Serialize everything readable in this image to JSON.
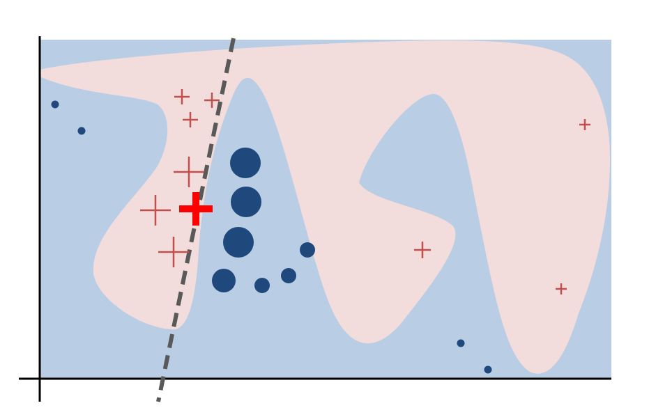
{
  "colors": {
    "background": "#ffffff",
    "negative_region": "#b9cde5",
    "positive_region": "#f2dcdc",
    "negative_marker": "#1f497d",
    "positive_marker": "#c0504d",
    "highlight_marker": "#ff0000",
    "boundary_line": "#595959",
    "axis": "#000000"
  },
  "legend": [],
  "regions": [
    {
      "name": "negative-class-region",
      "class": "negative"
    },
    {
      "name": "positive-class-region",
      "class": "positive"
    }
  ],
  "boundary": {
    "style": "dashed"
  },
  "markers": {
    "positive": [
      {
        "name": "plus-marker",
        "size": "small"
      },
      {
        "name": "plus-marker",
        "size": "small"
      },
      {
        "name": "plus-marker",
        "size": "small"
      },
      {
        "name": "plus-marker",
        "size": "large"
      },
      {
        "name": "plus-marker",
        "size": "large"
      },
      {
        "name": "plus-marker",
        "size": "large"
      },
      {
        "name": "plus-marker",
        "size": "small"
      },
      {
        "name": "plus-marker",
        "size": "tiny"
      },
      {
        "name": "plus-marker",
        "size": "tiny"
      }
    ],
    "highlighted": {
      "name": "highlighted-plus-marker",
      "shape": "plus",
      "emphasis": true
    },
    "negative": [
      {
        "name": "dot-marker",
        "size": "tiny"
      },
      {
        "name": "dot-marker",
        "size": "tiny"
      },
      {
        "name": "dot-marker",
        "size": "large"
      },
      {
        "name": "dot-marker",
        "size": "large"
      },
      {
        "name": "dot-marker",
        "size": "large"
      },
      {
        "name": "dot-marker",
        "size": "medium"
      },
      {
        "name": "dot-marker",
        "size": "small"
      },
      {
        "name": "dot-marker",
        "size": "small"
      },
      {
        "name": "dot-marker",
        "size": "small"
      },
      {
        "name": "dot-marker",
        "size": "tiny"
      },
      {
        "name": "dot-marker",
        "size": "tiny"
      }
    ]
  }
}
